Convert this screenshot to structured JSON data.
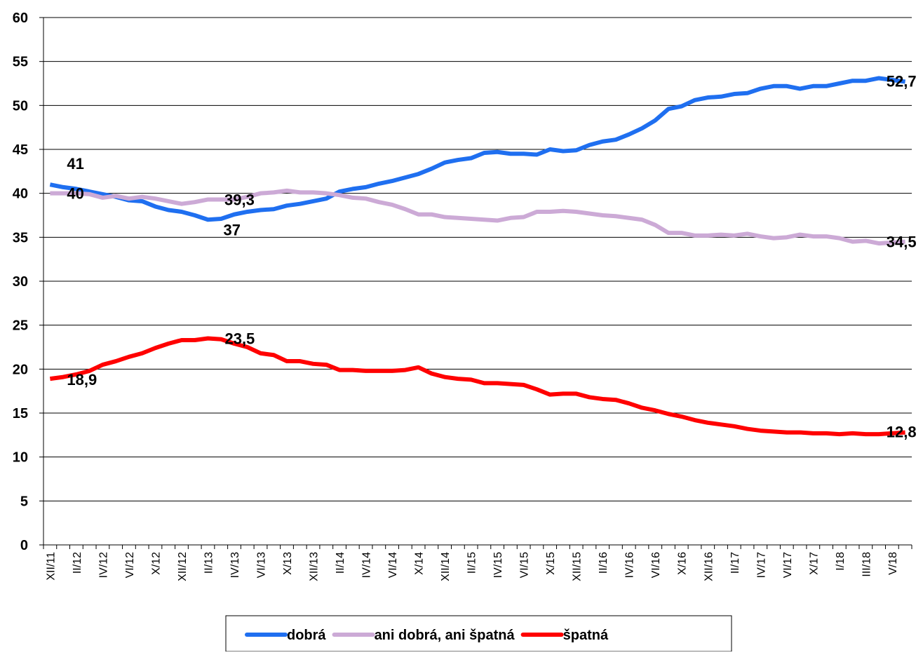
{
  "chart_data": {
    "type": "line",
    "categories": [
      "XII/11",
      null,
      "II/12",
      null,
      "IV/12",
      null,
      "VI/12",
      null,
      "X/12",
      null,
      "XII/12",
      null,
      "II/13",
      null,
      "IV/13",
      null,
      "VI/13",
      null,
      "X/13",
      null,
      "XII/13",
      null,
      "II/14",
      null,
      "IV/14",
      null,
      "VI/14",
      null,
      "X/14",
      null,
      "XII/14",
      null,
      "II/15",
      null,
      "IV/15",
      null,
      "VI/15",
      null,
      "X/15",
      null,
      "XII/15",
      null,
      "II/16",
      null,
      "IV/16",
      null,
      "VI/16",
      null,
      "X/16",
      null,
      "XII/16",
      null,
      "II/17",
      null,
      "IV/17",
      null,
      "VI/17",
      null,
      "X/17",
      null,
      "I/18",
      null,
      "III/18",
      null,
      "V/18",
      null
    ],
    "series": [
      {
        "name": "dobrá",
        "color": "#1f6ff0",
        "values": [
          41,
          40.7,
          40.5,
          40.2,
          39.9,
          39.6,
          39.2,
          39.1,
          38.5,
          38.1,
          37.9,
          37.5,
          37.0,
          37.1,
          37.6,
          37.9,
          38.1,
          38.2,
          38.6,
          38.8,
          39.1,
          39.4,
          40.2,
          40.5,
          40.7,
          41.1,
          41.4,
          41.8,
          42.2,
          42.8,
          43.5,
          43.8,
          44.0,
          44.6,
          44.7,
          44.5,
          44.5,
          44.4,
          45.0,
          44.8,
          44.9,
          45.5,
          45.9,
          46.1,
          46.7,
          47.4,
          48.3,
          49.6,
          49.9,
          50.6,
          50.9,
          51.0,
          51.3,
          51.4,
          51.9,
          52.2,
          52.2,
          51.9,
          52.2,
          52.2,
          52.5,
          52.8,
          52.8,
          53.1,
          52.9,
          52.7
        ],
        "value_labels": [
          "41",
          null,
          null,
          null,
          null,
          null,
          null,
          null,
          null,
          null,
          null,
          null,
          "37",
          null,
          null,
          null,
          null,
          null,
          null,
          null,
          null,
          null,
          null,
          null,
          null,
          null,
          null,
          null,
          null,
          null,
          null,
          null,
          null,
          null,
          null,
          null,
          null,
          null,
          null,
          null,
          null,
          null,
          null,
          null,
          null,
          null,
          null,
          null,
          null,
          null,
          null,
          null,
          null,
          null,
          null,
          null,
          null,
          null,
          null,
          null,
          null,
          null,
          null,
          null,
          null,
          "52,7"
        ]
      },
      {
        "name": "ani dobrá, ani špatná",
        "color": "#ccaad6",
        "values": [
          40,
          40,
          40,
          39.9,
          39.5,
          39.7,
          39.4,
          39.6,
          39.4,
          39.1,
          38.8,
          39.0,
          39.3,
          39.3,
          39.3,
          39.6,
          40.0,
          40.1,
          40.3,
          40.1,
          40.1,
          40.0,
          39.8,
          39.5,
          39.4,
          39.0,
          38.7,
          38.2,
          37.6,
          37.6,
          37.3,
          37.2,
          37.1,
          37.0,
          36.9,
          37.2,
          37.3,
          37.9,
          37.9,
          38.0,
          37.9,
          37.7,
          37.5,
          37.4,
          37.2,
          37.0,
          36.4,
          35.5,
          35.5,
          35.2,
          35.2,
          35.3,
          35.2,
          35.4,
          35.1,
          34.9,
          35.0,
          35.3,
          35.1,
          35.1,
          34.9,
          34.5,
          34.6,
          34.3,
          34.4,
          34.5
        ],
        "value_labels": [
          "40",
          null,
          null,
          null,
          null,
          null,
          null,
          null,
          null,
          null,
          null,
          null,
          null,
          null,
          "39,3",
          null,
          null,
          null,
          null,
          null,
          null,
          null,
          null,
          null,
          null,
          null,
          null,
          null,
          null,
          null,
          null,
          null,
          null,
          null,
          null,
          null,
          null,
          null,
          null,
          null,
          null,
          null,
          null,
          null,
          null,
          null,
          null,
          null,
          null,
          null,
          null,
          null,
          null,
          null,
          null,
          null,
          null,
          null,
          null,
          null,
          null,
          null,
          null,
          null,
          null,
          "34,5"
        ]
      },
      {
        "name": "špatná",
        "color": "#ff0000",
        "values": [
          18.9,
          19.1,
          19.4,
          19.8,
          20.5,
          20.9,
          21.4,
          21.8,
          22.4,
          22.9,
          23.3,
          23.3,
          23.5,
          23.4,
          22.9,
          22.5,
          21.8,
          21.6,
          20.9,
          20.9,
          20.6,
          20.5,
          19.9,
          19.9,
          19.8,
          19.8,
          19.8,
          19.9,
          20.2,
          19.5,
          19.1,
          18.9,
          18.8,
          18.4,
          18.4,
          18.3,
          18.2,
          17.7,
          17.1,
          17.2,
          17.2,
          16.8,
          16.6,
          16.5,
          16.1,
          15.6,
          15.3,
          14.9,
          14.6,
          14.2,
          13.9,
          13.7,
          13.5,
          13.2,
          13.0,
          12.9,
          12.8,
          12.8,
          12.7,
          12.7,
          12.6,
          12.7,
          12.6,
          12.6,
          12.7,
          12.8
        ],
        "value_labels": [
          "18,9",
          null,
          null,
          null,
          null,
          null,
          null,
          null,
          null,
          null,
          null,
          null,
          "23,5",
          null,
          null,
          null,
          null,
          null,
          null,
          null,
          null,
          null,
          null,
          null,
          null,
          null,
          null,
          null,
          null,
          null,
          null,
          null,
          null,
          null,
          null,
          null,
          null,
          null,
          null,
          null,
          null,
          null,
          null,
          null,
          null,
          null,
          null,
          null,
          null,
          null,
          null,
          null,
          null,
          null,
          null,
          null,
          null,
          null,
          null,
          null,
          null,
          null,
          null,
          null,
          null,
          "12,8"
        ]
      }
    ],
    "ylim": [
      0,
      60
    ],
    "yticks": [
      0,
      5,
      10,
      15,
      20,
      25,
      30,
      35,
      40,
      45,
      50,
      55,
      60
    ],
    "grid": true,
    "legend": "bottom"
  }
}
